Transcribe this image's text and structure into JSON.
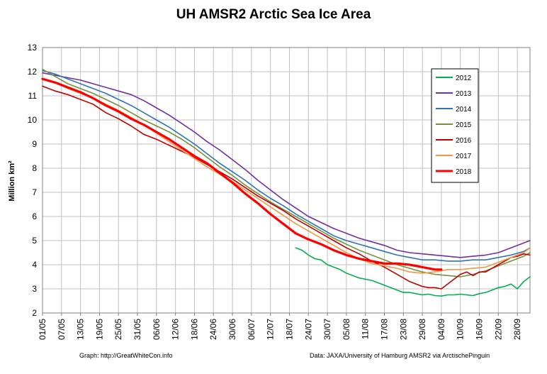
{
  "chart_data": {
    "type": "line",
    "title": "UH AMSR2 Arctic Sea Ice Area",
    "ylabel": "Million km²",
    "xlabel": "",
    "ylim": [
      2,
      13
    ],
    "yticks": [
      2,
      3,
      4,
      5,
      6,
      7,
      8,
      9,
      10,
      11,
      12,
      13
    ],
    "x_ticks": [
      "01/05",
      "07/05",
      "13/05",
      "19/05",
      "25/05",
      "31/05",
      "06/06",
      "12/06",
      "18/06",
      "24/06",
      "30/06",
      "06/07",
      "12/07",
      "18/07",
      "24/07",
      "30/07",
      "05/08",
      "11/08",
      "17/08",
      "23/08",
      "29/08",
      "04/09",
      "10/09",
      "16/09",
      "22/09",
      "28/09"
    ],
    "x_unit": "day of season, 1 May = day 0, 6-day tick spacing",
    "xlim": [
      0,
      154
    ],
    "grid": true,
    "legend_position": "right",
    "series": [
      {
        "name": "2012",
        "color": "#00b050",
        "width": 1.6,
        "x": [
          80,
          82,
          84,
          86,
          88,
          90,
          92,
          94,
          96,
          98,
          100,
          102,
          104,
          106,
          108,
          110,
          112,
          114,
          116,
          118,
          120,
          122,
          124,
          126,
          128,
          130,
          132,
          134,
          136,
          138,
          140,
          142,
          144,
          146,
          148,
          150,
          152,
          154
        ],
        "y": [
          4.7,
          4.6,
          4.4,
          4.25,
          4.2,
          4.0,
          3.9,
          3.8,
          3.65,
          3.55,
          3.45,
          3.4,
          3.35,
          3.25,
          3.15,
          3.05,
          2.95,
          2.85,
          2.85,
          2.8,
          2.75,
          2.78,
          2.72,
          2.7,
          2.75,
          2.75,
          2.78,
          2.75,
          2.72,
          2.8,
          2.85,
          2.95,
          3.05,
          3.1,
          3.2,
          3.0,
          3.3,
          3.5
        ]
      },
      {
        "name": "2013",
        "color": "#7030a0",
        "width": 1.6,
        "x": [
          0,
          4,
          8,
          12,
          16,
          20,
          24,
          28,
          32,
          36,
          40,
          44,
          48,
          52,
          56,
          60,
          64,
          68,
          72,
          76,
          80,
          84,
          88,
          92,
          96,
          100,
          104,
          108,
          112,
          116,
          120,
          124,
          128,
          132,
          136,
          140,
          144,
          148,
          152,
          154
        ],
        "y": [
          11.95,
          11.85,
          11.75,
          11.65,
          11.5,
          11.35,
          11.2,
          11.05,
          10.8,
          10.5,
          10.2,
          9.85,
          9.5,
          9.1,
          8.75,
          8.35,
          7.95,
          7.5,
          7.1,
          6.7,
          6.35,
          6.0,
          5.75,
          5.5,
          5.3,
          5.1,
          4.95,
          4.8,
          4.6,
          4.5,
          4.45,
          4.4,
          4.35,
          4.3,
          4.35,
          4.4,
          4.5,
          4.7,
          4.9,
          5.0
        ]
      },
      {
        "name": "2014",
        "color": "#2e75b6",
        "width": 1.6,
        "x": [
          0,
          4,
          8,
          12,
          16,
          20,
          24,
          28,
          32,
          36,
          40,
          44,
          48,
          52,
          56,
          60,
          64,
          68,
          72,
          76,
          80,
          84,
          88,
          92,
          96,
          100,
          104,
          108,
          112,
          116,
          120,
          124,
          128,
          132,
          136,
          140,
          144,
          148,
          152,
          154
        ],
        "y": [
          12.05,
          11.9,
          11.7,
          11.5,
          11.3,
          11.1,
          10.85,
          10.6,
          10.3,
          10.0,
          9.7,
          9.35,
          9.0,
          8.6,
          8.2,
          7.85,
          7.5,
          7.1,
          6.75,
          6.45,
          6.1,
          5.8,
          5.5,
          5.2,
          5.0,
          4.85,
          4.7,
          4.55,
          4.4,
          4.3,
          4.2,
          4.2,
          4.15,
          4.15,
          4.2,
          4.2,
          4.3,
          4.4,
          4.55,
          4.7
        ]
      },
      {
        "name": "2015",
        "color": "#76923c",
        "width": 1.6,
        "x": [
          0,
          4,
          8,
          12,
          16,
          20,
          24,
          28,
          32,
          36,
          40,
          44,
          48,
          52,
          56,
          60,
          64,
          68,
          72,
          76,
          80,
          84,
          88,
          92,
          96,
          100,
          104,
          108,
          112,
          116,
          120,
          124,
          128,
          132,
          136,
          140,
          144,
          148,
          152,
          154
        ],
        "y": [
          12.1,
          11.8,
          11.5,
          11.3,
          11.1,
          10.85,
          10.6,
          10.3,
          10.0,
          9.75,
          9.5,
          9.2,
          8.85,
          8.45,
          8.05,
          7.7,
          7.3,
          6.95,
          6.6,
          6.3,
          6.0,
          5.7,
          5.4,
          5.1,
          4.85,
          4.6,
          4.4,
          4.2,
          4.0,
          3.85,
          3.7,
          3.6,
          3.55,
          3.5,
          3.6,
          3.75,
          3.95,
          4.15,
          4.35,
          4.5
        ]
      },
      {
        "name": "2016",
        "color": "#c00000",
        "width": 1.6,
        "x": [
          0,
          4,
          8,
          12,
          16,
          20,
          24,
          28,
          32,
          36,
          40,
          44,
          48,
          52,
          56,
          60,
          64,
          68,
          72,
          76,
          80,
          84,
          88,
          92,
          96,
          100,
          104,
          108,
          112,
          116,
          120,
          122,
          124,
          126,
          128,
          130,
          132,
          134,
          136,
          138,
          140,
          142,
          144,
          146,
          148,
          150,
          152,
          154
        ],
        "y": [
          11.4,
          11.2,
          11.05,
          10.85,
          10.65,
          10.3,
          10.05,
          9.75,
          9.4,
          9.2,
          8.95,
          8.7,
          8.45,
          8.15,
          7.85,
          7.55,
          7.2,
          6.85,
          6.55,
          6.25,
          5.9,
          5.6,
          5.3,
          5.0,
          4.7,
          4.45,
          4.15,
          3.9,
          3.6,
          3.3,
          3.1,
          3.05,
          3.05,
          3.0,
          3.2,
          3.4,
          3.6,
          3.7,
          3.55,
          3.7,
          3.7,
          3.85,
          4.0,
          4.15,
          4.3,
          4.35,
          4.45,
          4.4
        ]
      },
      {
        "name": "2017",
        "color": "#f79646",
        "width": 1.6,
        "x": [
          0,
          4,
          8,
          12,
          16,
          20,
          24,
          28,
          32,
          36,
          40,
          44,
          48,
          52,
          56,
          60,
          64,
          68,
          72,
          76,
          80,
          84,
          88,
          92,
          96,
          100,
          104,
          108,
          112,
          116,
          120,
          124,
          128,
          132,
          136,
          140,
          144,
          148,
          152,
          154
        ],
        "y": [
          11.7,
          11.55,
          11.3,
          11.1,
          10.9,
          10.65,
          10.4,
          10.1,
          9.8,
          9.45,
          9.1,
          8.75,
          8.4,
          8.05,
          7.75,
          7.45,
          7.1,
          6.75,
          6.4,
          6.05,
          5.7,
          5.4,
          5.1,
          4.8,
          4.5,
          4.25,
          4.05,
          3.95,
          3.85,
          3.7,
          3.65,
          3.7,
          3.8,
          3.8,
          3.85,
          3.9,
          4.1,
          4.3,
          4.5,
          4.7
        ]
      },
      {
        "name": "2018",
        "color": "#ff0000",
        "width": 3.2,
        "x": [
          0,
          4,
          8,
          12,
          16,
          20,
          24,
          28,
          32,
          36,
          40,
          44,
          48,
          52,
          56,
          60,
          64,
          68,
          72,
          76,
          80,
          84,
          88,
          92,
          96,
          100,
          104,
          108,
          112,
          116,
          120,
          124,
          126
        ],
        "y": [
          11.7,
          11.55,
          11.35,
          11.15,
          10.9,
          10.6,
          10.35,
          10.05,
          9.8,
          9.5,
          9.2,
          8.85,
          8.5,
          8.2,
          7.8,
          7.4,
          6.95,
          6.55,
          6.1,
          5.7,
          5.3,
          5.05,
          4.85,
          4.6,
          4.4,
          4.25,
          4.15,
          4.05,
          4.05,
          4.0,
          3.9,
          3.8,
          3.8
        ]
      }
    ]
  },
  "footer": {
    "left": "Graph: http://GreatWhiteCon.info",
    "right": "Data: JAXA/University of Hamburg AMSR2 via  ArctischePinguin"
  }
}
